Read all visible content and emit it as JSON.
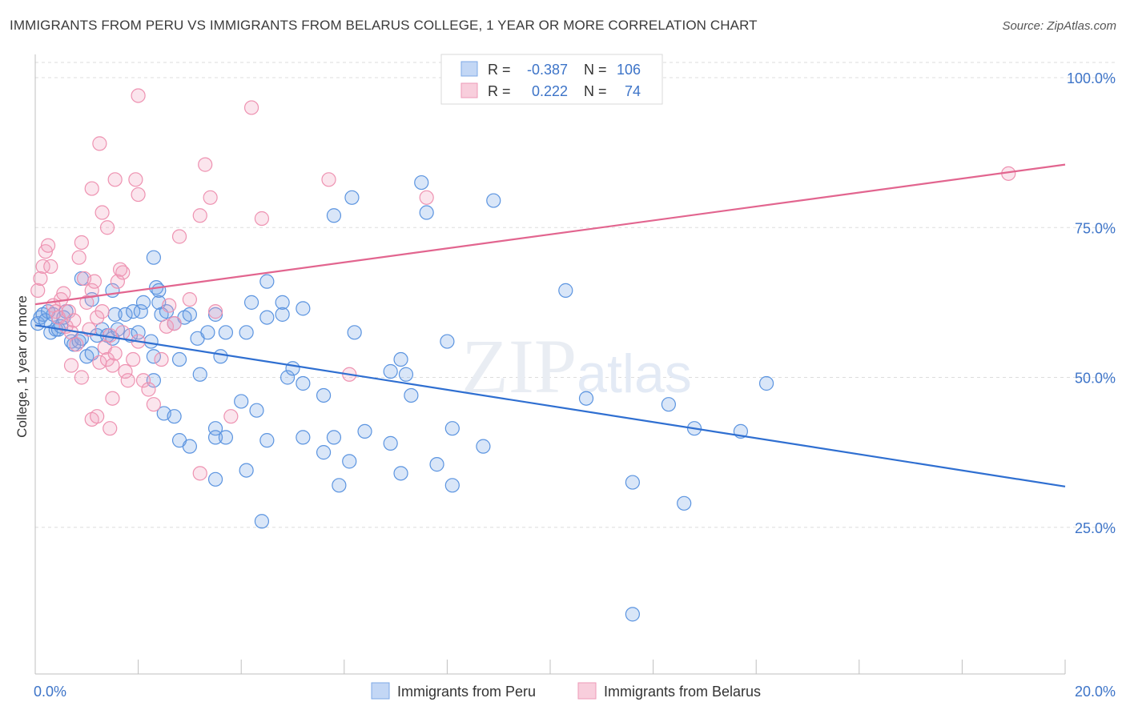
{
  "title": "IMMIGRANTS FROM PERU VS IMMIGRANTS FROM BELARUS COLLEGE, 1 YEAR OR MORE CORRELATION CHART",
  "source": "Source: ZipAtlas.com",
  "watermark": "ZIPatlas",
  "colors": {
    "peru": "#5b94e0",
    "peru_fill": "rgba(120,166,230,0.28)",
    "peru_line": "#2f6fd1",
    "belarus": "#ee92b1",
    "belarus_fill": "rgba(242,160,190,0.28)",
    "belarus_line": "#e2658f",
    "tick_label": "#3d74c8",
    "grid": "#dddddd"
  },
  "legend": {
    "rows": [
      {
        "r_label": "R =",
        "r_value": "-0.387",
        "n_label": "N =",
        "n_value": "106"
      },
      {
        "r_label": "R =",
        "r_value": "0.222",
        "n_label": "N =",
        "n_value": "74"
      }
    ]
  },
  "bottom_legend": [
    "Immigrants from Peru",
    "Immigrants from Belarus"
  ],
  "chart_data": {
    "type": "scatter",
    "title": "IMMIGRANTS FROM PERU VS IMMIGRANTS FROM BELARUS COLLEGE, 1 YEAR OR MORE CORRELATION CHART",
    "xlabel": "",
    "ylabel": "College, 1 year or more",
    "xlim": [
      0,
      20
    ],
    "ylim": [
      0,
      105
    ],
    "x_tick_labels": [
      "0.0%",
      "20.0%"
    ],
    "y_ticks": [
      25,
      50,
      75,
      100
    ],
    "y_tick_labels": [
      "25.0%",
      "50.0%",
      "75.0%",
      "100.0%"
    ],
    "grid": true,
    "legend_position": "top-center",
    "series": [
      {
        "name": "Immigrants from Peru",
        "R": -0.387,
        "N": 106,
        "trend": {
          "x": [
            0,
            20
          ],
          "y": [
            58.7,
            31.8
          ]
        },
        "points": [
          [
            0.05,
            59
          ],
          [
            0.1,
            60
          ],
          [
            0.15,
            60.5
          ],
          [
            0.2,
            59.5
          ],
          [
            0.25,
            61
          ],
          [
            0.3,
            57.5
          ],
          [
            0.35,
            60.5
          ],
          [
            0.4,
            58
          ],
          [
            0.45,
            58
          ],
          [
            0.5,
            58.5
          ],
          [
            0.55,
            60
          ],
          [
            0.6,
            61
          ],
          [
            0.7,
            56
          ],
          [
            0.75,
            55.5
          ],
          [
            0.85,
            56
          ],
          [
            0.9,
            56.5
          ],
          [
            1.0,
            53.5
          ],
          [
            1.1,
            54
          ],
          [
            1.2,
            57
          ],
          [
            1.3,
            58
          ],
          [
            1.4,
            57
          ],
          [
            1.5,
            56.5
          ],
          [
            1.55,
            60.5
          ],
          [
            1.6,
            58
          ],
          [
            1.75,
            60.5
          ],
          [
            1.85,
            57
          ],
          [
            1.9,
            61
          ],
          [
            2.0,
            57.5
          ],
          [
            2.05,
            61
          ],
          [
            2.25,
            56
          ],
          [
            2.35,
            65
          ],
          [
            2.4,
            62.5
          ],
          [
            2.45,
            60.5
          ],
          [
            2.55,
            61
          ],
          [
            1.1,
            63
          ],
          [
            0.9,
            66.5
          ],
          [
            1.5,
            64.5
          ],
          [
            2.1,
            62.5
          ],
          [
            2.3,
            70
          ],
          [
            2.4,
            64.5
          ],
          [
            2.7,
            59
          ],
          [
            2.9,
            60
          ],
          [
            3.0,
            60.5
          ],
          [
            3.15,
            56.5
          ],
          [
            3.35,
            57.5
          ],
          [
            3.5,
            60.5
          ],
          [
            3.7,
            57.5
          ],
          [
            4.1,
            57.5
          ],
          [
            4.2,
            62.5
          ],
          [
            4.5,
            60
          ],
          [
            4.5,
            66
          ],
          [
            4.8,
            60.5
          ],
          [
            4.8,
            62.5
          ],
          [
            5.2,
            61.5
          ],
          [
            5.8,
            77
          ],
          [
            6.15,
            80
          ],
          [
            6.2,
            57.5
          ],
          [
            6.9,
            51
          ],
          [
            7.1,
            53
          ],
          [
            7.2,
            50.5
          ],
          [
            7.3,
            47
          ],
          [
            7.5,
            82.5
          ],
          [
            7.6,
            77.5
          ],
          [
            8.0,
            56
          ],
          [
            8.1,
            41.5
          ],
          [
            8.9,
            79.5
          ],
          [
            10.3,
            64.5
          ],
          [
            10.7,
            46.5
          ],
          [
            2.3,
            53.5
          ],
          [
            2.8,
            53
          ],
          [
            3.2,
            50.5
          ],
          [
            3.6,
            53.5
          ],
          [
            4.0,
            46
          ],
          [
            4.3,
            44.5
          ],
          [
            4.9,
            50
          ],
          [
            5.0,
            51.5
          ],
          [
            5.2,
            49
          ],
          [
            5.6,
            47
          ],
          [
            2.3,
            49.5
          ],
          [
            2.5,
            44
          ],
          [
            2.7,
            43.5
          ],
          [
            2.8,
            39.5
          ],
          [
            3.0,
            38.5
          ],
          [
            3.5,
            41.5
          ],
          [
            3.5,
            40
          ],
          [
            3.7,
            40
          ],
          [
            4.1,
            34.5
          ],
          [
            4.5,
            39.5
          ],
          [
            5.2,
            40
          ],
          [
            5.6,
            37.5
          ],
          [
            5.8,
            40
          ],
          [
            5.9,
            32
          ],
          [
            6.1,
            36
          ],
          [
            6.4,
            41
          ],
          [
            6.9,
            39
          ],
          [
            7.1,
            34
          ],
          [
            7.8,
            35.5
          ],
          [
            8.1,
            32
          ],
          [
            8.7,
            38.5
          ],
          [
            3.5,
            33
          ],
          [
            4.4,
            26
          ],
          [
            12.3,
            45.5
          ],
          [
            12.8,
            41.5
          ],
          [
            13.7,
            41
          ],
          [
            14.2,
            49
          ],
          [
            11.6,
            32.5
          ],
          [
            12.6,
            29
          ],
          [
            11.6,
            10.5
          ]
        ]
      },
      {
        "name": "Immigrants from Belarus",
        "R": 0.222,
        "N": 74,
        "trend": {
          "x": [
            0,
            20
          ],
          "y": [
            62.2,
            85.5
          ]
        },
        "points": [
          [
            0.05,
            64.5
          ],
          [
            0.1,
            66.5
          ],
          [
            0.15,
            68.5
          ],
          [
            0.2,
            71
          ],
          [
            0.25,
            72
          ],
          [
            0.3,
            68.5
          ],
          [
            0.35,
            62
          ],
          [
            0.4,
            61
          ],
          [
            0.45,
            60
          ],
          [
            0.5,
            63
          ],
          [
            0.55,
            64
          ],
          [
            0.6,
            58.5
          ],
          [
            0.65,
            61
          ],
          [
            0.7,
            57.5
          ],
          [
            0.75,
            59.5
          ],
          [
            0.8,
            55.5
          ],
          [
            0.85,
            70
          ],
          [
            0.9,
            72.5
          ],
          [
            0.95,
            66.5
          ],
          [
            1.0,
            62.5
          ],
          [
            1.05,
            58
          ],
          [
            1.1,
            64.5
          ],
          [
            1.15,
            66
          ],
          [
            1.2,
            60
          ],
          [
            1.25,
            52.5
          ],
          [
            1.3,
            61
          ],
          [
            1.35,
            55
          ],
          [
            1.4,
            53
          ],
          [
            1.45,
            57
          ],
          [
            1.5,
            52
          ],
          [
            1.55,
            54
          ],
          [
            1.6,
            66
          ],
          [
            1.65,
            68
          ],
          [
            1.7,
            57.5
          ],
          [
            1.75,
            51
          ],
          [
            1.8,
            49.5
          ],
          [
            1.9,
            53
          ],
          [
            2.0,
            56
          ],
          [
            2.1,
            49.5
          ],
          [
            2.2,
            48
          ],
          [
            2.3,
            45.5
          ],
          [
            2.45,
            53
          ],
          [
            2.55,
            58.5
          ],
          [
            2.6,
            62
          ],
          [
            2.7,
            59
          ],
          [
            1.1,
            81.5
          ],
          [
            1.3,
            77.5
          ],
          [
            1.4,
            75
          ],
          [
            1.55,
            83
          ],
          [
            1.7,
            67.5
          ],
          [
            1.95,
            83
          ],
          [
            2.0,
            80.5
          ],
          [
            2.0,
            97
          ],
          [
            3.3,
            85.5
          ],
          [
            3.4,
            80
          ],
          [
            4.2,
            95
          ],
          [
            4.4,
            76.5
          ],
          [
            5.7,
            83
          ],
          [
            7.6,
            80
          ],
          [
            2.8,
            73.5
          ],
          [
            3.2,
            77
          ],
          [
            3.0,
            63
          ],
          [
            3.5,
            61
          ],
          [
            1.25,
            89
          ],
          [
            1.1,
            43
          ],
          [
            1.2,
            43.5
          ],
          [
            1.45,
            41.5
          ],
          [
            1.5,
            46.5
          ],
          [
            3.2,
            34
          ],
          [
            3.8,
            43.5
          ],
          [
            6.1,
            50.5
          ],
          [
            18.9,
            84
          ],
          [
            0.7,
            52
          ],
          [
            0.9,
            50
          ]
        ]
      }
    ]
  }
}
